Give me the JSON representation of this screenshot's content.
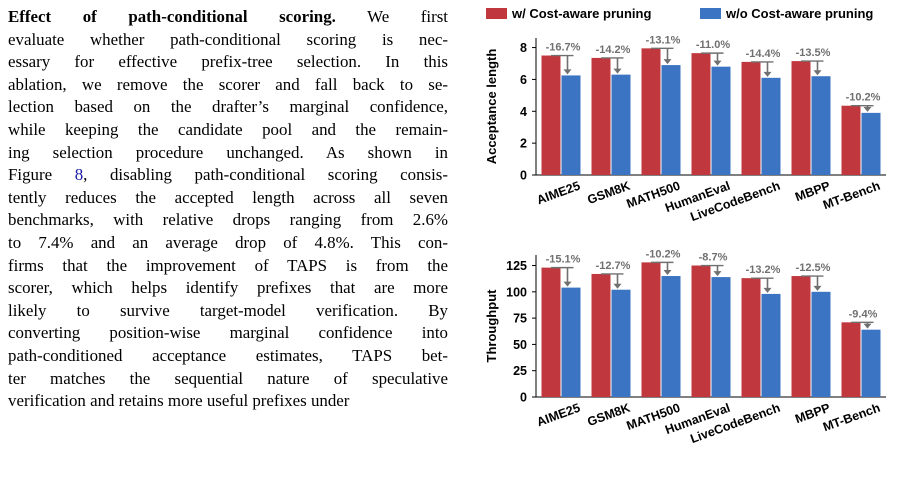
{
  "paragraph": {
    "heading": "Effect of path-conditional scoring.",
    "lines": [
      " We first",
      "evaluate whether path-conditional scoring is nec-",
      "essary for effective prefix-tree selection. In this",
      "ablation, we remove the scorer and fall back to se-",
      "lection based on the drafter’s marginal confidence,",
      "while keeping the candidate pool and the remain-",
      "ing selection procedure unchanged. As shown in",
      "__FIGREF__",
      "tently reduces the accepted length across all seven",
      "benchmarks, with relative drops ranging from 2.6%",
      "to 7.4% and an average drop of 4.8%. This con-",
      "firms that the improvement of TAPS is from the",
      "scorer, which helps identify prefixes that are more",
      "likely to survive target-model verification. By",
      "converting position-wise marginal confidence into",
      "path-conditioned acceptance estimates, TAPS bet-",
      "ter matches the sequential nature of speculative",
      "verification and retains more useful prefixes under"
    ],
    "fig_line_pre": "Figure ",
    "fig_ref": "8",
    "fig_line_post": ", disabling path-conditional scoring consis-"
  },
  "figure": {
    "colors": {
      "with": "#c0383e",
      "without": "#3a74c2",
      "annotation": "#707070"
    },
    "legend": [
      "w/ Cost-aware pruning",
      "w/o Cost-aware pruning"
    ],
    "chart_data": [
      {
        "type": "bar",
        "ylabel": "Acceptance length",
        "categories": [
          "AIME25",
          "GSM8K",
          "MATH500",
          "HumanEval",
          "LiveCodeBench",
          "MBPP",
          "MT-Bench"
        ],
        "ylim": [
          0,
          8.6
        ],
        "yticks": [
          0,
          2,
          4,
          6,
          8
        ],
        "series": [
          {
            "name": "w/ Cost-aware pruning",
            "values": [
              7.5,
              7.35,
              7.95,
              7.65,
              7.1,
              7.15,
              4.35
            ]
          },
          {
            "name": "w/o Cost-aware pruning",
            "values": [
              6.25,
              6.3,
              6.9,
              6.8,
              6.1,
              6.2,
              3.9
            ]
          }
        ],
        "annotations": [
          "-16.7%",
          "-14.2%",
          "-13.1%",
          "-11.0%",
          "-14.4%",
          "-13.5%",
          "-10.2%"
        ]
      },
      {
        "type": "bar",
        "ylabel": "Throughput",
        "categories": [
          "AIME25",
          "GSM8K",
          "MATH500",
          "HumanEval",
          "LiveCodeBench",
          "MBPP",
          "MT-Bench"
        ],
        "ylim": [
          0,
          135
        ],
        "yticks": [
          0,
          25,
          50,
          75,
          100,
          125
        ],
        "series": [
          {
            "name": "w/ Cost-aware pruning",
            "values": [
              123,
              117,
              128,
              125,
              113,
              115,
              71
            ]
          },
          {
            "name": "w/o Cost-aware pruning",
            "values": [
              104,
              102,
              115,
              114,
              98,
              100,
              64
            ]
          }
        ],
        "annotations": [
          "-15.1%",
          "-12.7%",
          "-10.2%",
          "-8.7%",
          "-13.2%",
          "-12.5%",
          "-9.4%"
        ]
      }
    ]
  }
}
